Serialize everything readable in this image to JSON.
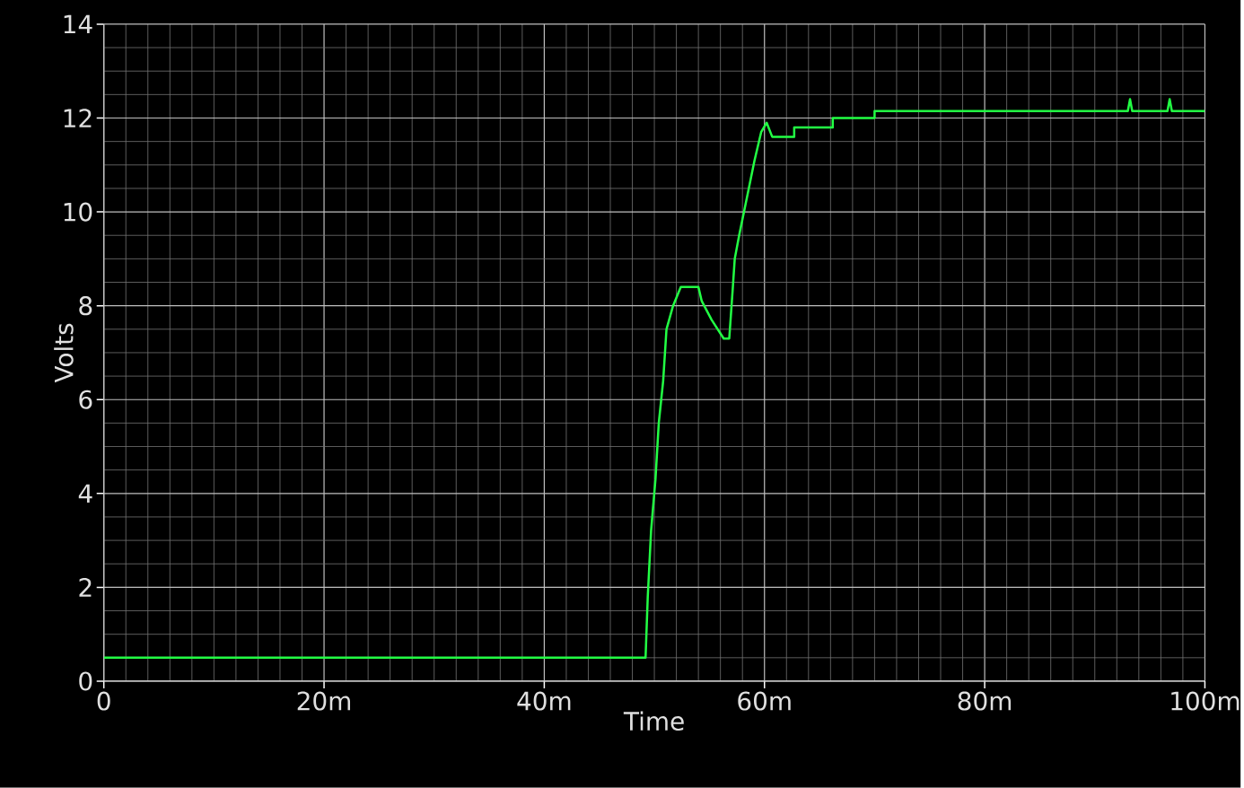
{
  "chart_data": {
    "type": "line",
    "xlabel": "Time",
    "ylabel": "Volts",
    "x": [
      0,
      49.2,
      49.4,
      49.7,
      50.1,
      50.4,
      50.8,
      51.1,
      51.7,
      52.4,
      54.0,
      54.3,
      55.2,
      56.3,
      56.8,
      57.1,
      57.3,
      57.7,
      58.4,
      59.1,
      59.7,
      60.2,
      60.7,
      62.7,
      62.7,
      66.2,
      66.2,
      70.0,
      70.0,
      93.0,
      93.2,
      93.4,
      96.6,
      96.8,
      97.0,
      100
    ],
    "series": [
      {
        "color": "#22ff44",
        "values": [
          0.5,
          0.5,
          1.8,
          3.2,
          4.3,
          5.5,
          6.4,
          7.5,
          8.0,
          8.4,
          8.4,
          8.1,
          7.7,
          7.3,
          7.3,
          8.3,
          9.0,
          9.5,
          10.3,
          11.1,
          11.7,
          11.9,
          11.6,
          11.6,
          11.8,
          11.8,
          12.0,
          12.0,
          12.15,
          12.15,
          12.4,
          12.15,
          12.15,
          12.4,
          12.15,
          12.15
        ]
      }
    ],
    "xlim": [
      0,
      100
    ],
    "ylim": [
      0,
      14
    ],
    "xticks": [
      0,
      {
        "value": 20,
        "label": "20m"
      },
      {
        "value": 40,
        "label": "40m"
      },
      {
        "value": 60,
        "label": "60m"
      },
      {
        "value": 80,
        "label": "80m"
      },
      {
        "value": 100,
        "label": "100m"
      }
    ],
    "yticks": [
      0,
      2,
      4,
      6,
      8,
      10,
      12,
      14
    ],
    "grid": true,
    "marker": "none",
    "line_style": "solid"
  }
}
